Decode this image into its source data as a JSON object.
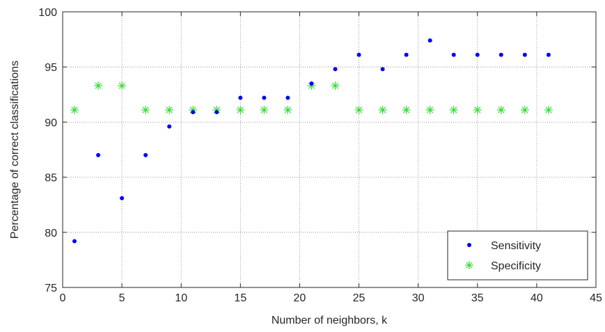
{
  "chart_data": {
    "type": "scatter",
    "xlabel": "Number of neighbors, k",
    "ylabel": "Percentage of correct classifications",
    "xlim": [
      0,
      45
    ],
    "ylim": [
      75,
      100
    ],
    "xticks": [
      0,
      5,
      10,
      15,
      20,
      25,
      30,
      35,
      40,
      45
    ],
    "yticks": [
      75,
      80,
      85,
      90,
      95,
      100
    ],
    "grid": true,
    "legend_position": "bottom-right",
    "series": [
      {
        "name": "Sensitivity",
        "marker": "dot",
        "color": "#0000ff",
        "x": [
          1,
          3,
          5,
          7,
          9,
          11,
          13,
          15,
          17,
          19,
          21,
          23,
          25,
          27,
          29,
          31,
          33,
          35,
          37,
          39,
          41
        ],
        "y": [
          79.2,
          87.0,
          83.1,
          87.0,
          89.6,
          90.9,
          90.9,
          92.2,
          92.2,
          92.2,
          93.5,
          94.8,
          96.1,
          94.8,
          96.1,
          97.4,
          96.1,
          96.1,
          96.1,
          96.1,
          96.1
        ]
      },
      {
        "name": "Specificity",
        "marker": "star",
        "color": "#33dd33",
        "x": [
          1,
          3,
          5,
          7,
          9,
          11,
          13,
          15,
          17,
          19,
          21,
          23,
          25,
          27,
          29,
          31,
          33,
          35,
          37,
          39,
          41
        ],
        "y": [
          91.1,
          93.3,
          93.3,
          91.1,
          91.1,
          91.1,
          91.1,
          91.1,
          91.1,
          91.1,
          93.3,
          93.3,
          91.1,
          91.1,
          91.1,
          91.1,
          91.1,
          91.1,
          91.1,
          91.1,
          91.1
        ]
      }
    ]
  }
}
